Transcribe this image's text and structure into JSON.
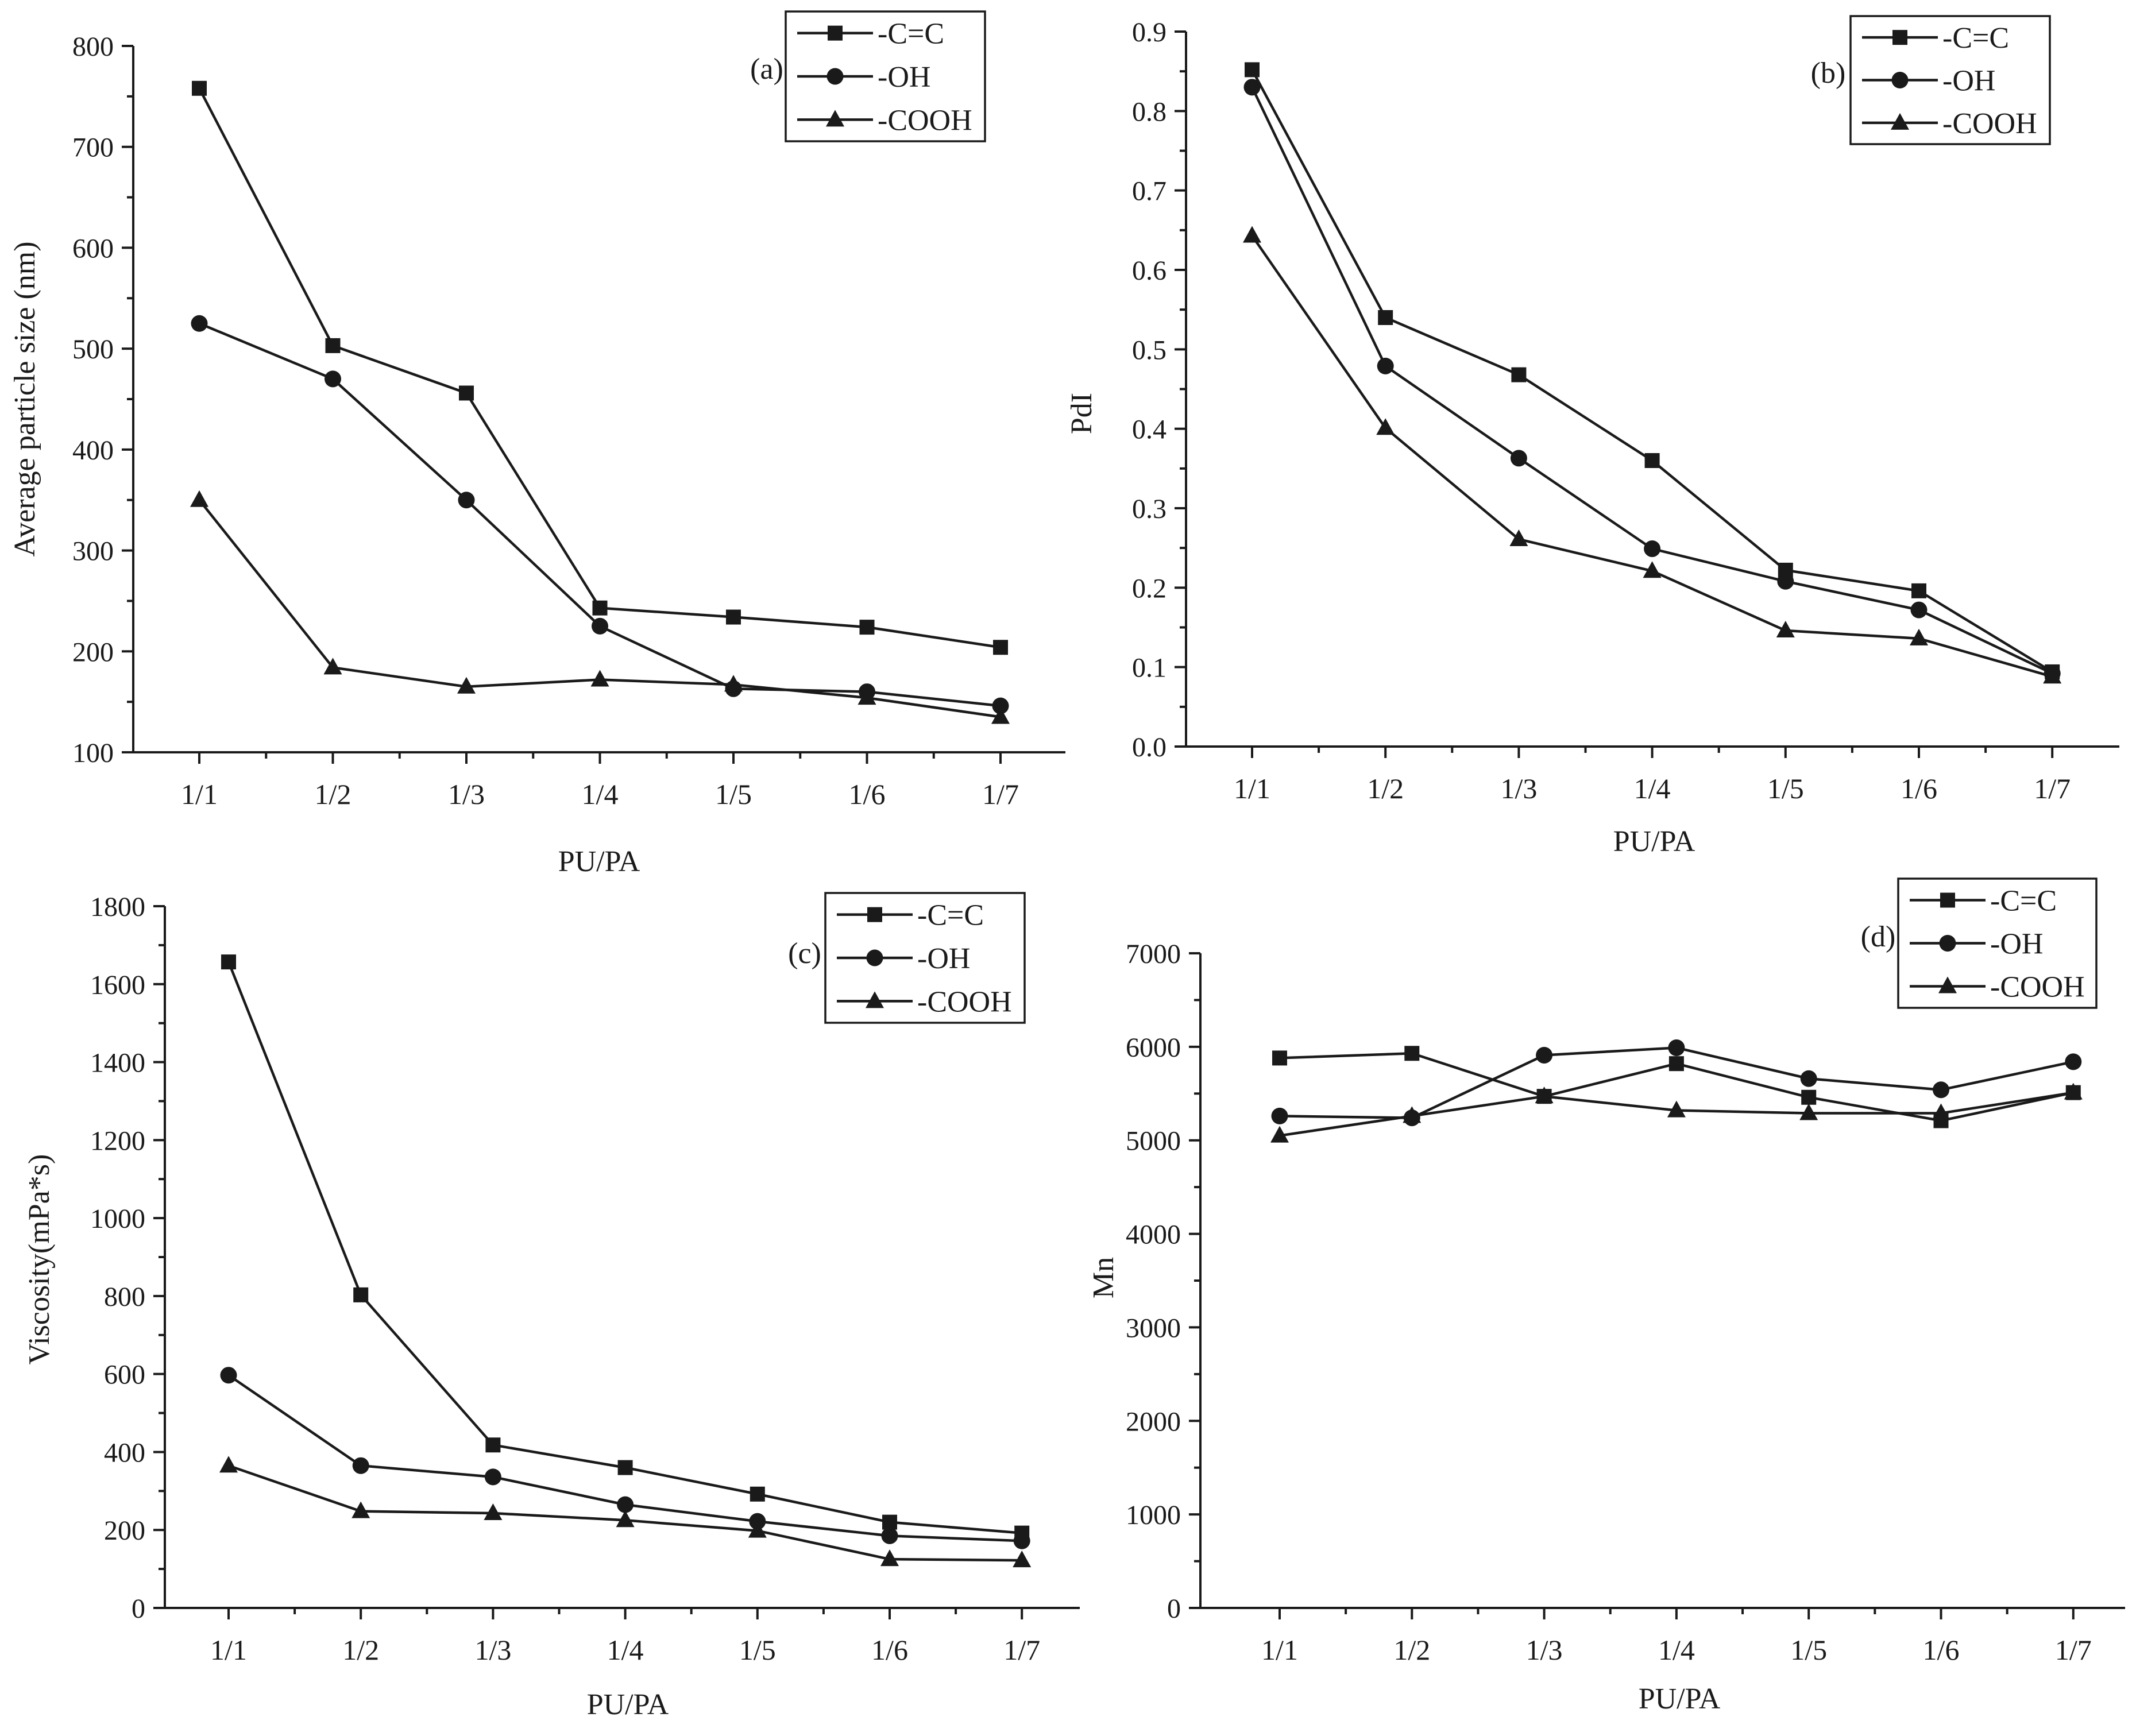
{
  "chart_data": [
    {
      "id": "a",
      "type": "line",
      "panel_label": "(a)",
      "xlabel": "PU/PA",
      "ylabel": "Average particle size (nm)",
      "categories": [
        "1/1",
        "1/2",
        "1/3",
        "1/4",
        "1/5",
        "1/6",
        "1/7"
      ],
      "ylim": [
        100,
        800
      ],
      "yticks": [
        "100",
        "200",
        "300",
        "400",
        "500",
        "600",
        "700",
        "800"
      ],
      "series": [
        {
          "name": "-C=C",
          "marker": "square",
          "values": [
            758,
            503,
            456,
            243,
            234,
            224,
            204
          ]
        },
        {
          "name": "-OH",
          "marker": "circle",
          "values": [
            525,
            470,
            350,
            225,
            163,
            160,
            146
          ]
        },
        {
          "name": "-COOH",
          "marker": "triangle",
          "values": [
            350,
            184,
            165,
            172,
            167,
            154,
            135
          ]
        }
      ]
    },
    {
      "id": "b",
      "type": "line",
      "panel_label": "(b)",
      "xlabel": "PU/PA",
      "ylabel": "PdI",
      "categories": [
        "1/1",
        "1/2",
        "1/3",
        "1/4",
        "1/5",
        "1/6",
        "1/7"
      ],
      "ylim": [
        0.0,
        0.9
      ],
      "yticks": [
        "0.0",
        "0.1",
        "0.2",
        "0.3",
        "0.4",
        "0.5",
        "0.6",
        "0.7",
        "0.8",
        "0.9"
      ],
      "series": [
        {
          "name": "-C=C",
          "marker": "square",
          "values": [
            0.852,
            0.54,
            0.468,
            0.36,
            0.222,
            0.196,
            0.094
          ]
        },
        {
          "name": "-OH",
          "marker": "circle",
          "values": [
            0.83,
            0.479,
            0.363,
            0.249,
            0.208,
            0.172,
            0.092
          ]
        },
        {
          "name": "-COOH",
          "marker": "triangle",
          "values": [
            0.643,
            0.401,
            0.261,
            0.221,
            0.146,
            0.136,
            0.088
          ]
        }
      ]
    },
    {
      "id": "c",
      "type": "line",
      "panel_label": "(c)",
      "xlabel": "PU/PA",
      "ylabel": "Viscosity(mPa*s)",
      "categories": [
        "1/1",
        "1/2",
        "1/3",
        "1/4",
        "1/5",
        "1/6",
        "1/7"
      ],
      "ylim": [
        0,
        1800
      ],
      "yticks": [
        "0",
        "200",
        "400",
        "600",
        "800",
        "1000",
        "1200",
        "1400",
        "1600",
        "1800"
      ],
      "series": [
        {
          "name": "-C=C",
          "marker": "square",
          "values": [
            1657,
            803,
            418,
            360,
            292,
            220,
            192
          ]
        },
        {
          "name": "-OH",
          "marker": "circle",
          "values": [
            597,
            365,
            336,
            265,
            222,
            185,
            172
          ]
        },
        {
          "name": "-COOH",
          "marker": "triangle",
          "values": [
            365,
            248,
            243,
            225,
            198,
            125,
            122
          ]
        }
      ]
    },
    {
      "id": "d",
      "type": "line",
      "panel_label": "(d)",
      "xlabel": "PU/PA",
      "ylabel": "Mn",
      "categories": [
        "1/1",
        "1/2",
        "1/3",
        "1/4",
        "1/5",
        "1/6",
        "1/7"
      ],
      "ylim": [
        0,
        7000
      ],
      "yticks": [
        "0",
        "1000",
        "2000",
        "3000",
        "4000",
        "5000",
        "6000",
        "7000"
      ],
      "series": [
        {
          "name": "-C=C",
          "marker": "square",
          "values": [
            5880,
            5930,
            5470,
            5820,
            5460,
            5210,
            5510
          ]
        },
        {
          "name": "-OH",
          "marker": "circle",
          "values": [
            5260,
            5240,
            5910,
            5990,
            5660,
            5540,
            5840
          ]
        },
        {
          "name": "-COOH",
          "marker": "triangle",
          "values": [
            5050,
            5260,
            5470,
            5320,
            5290,
            5290,
            5510
          ]
        }
      ]
    }
  ]
}
